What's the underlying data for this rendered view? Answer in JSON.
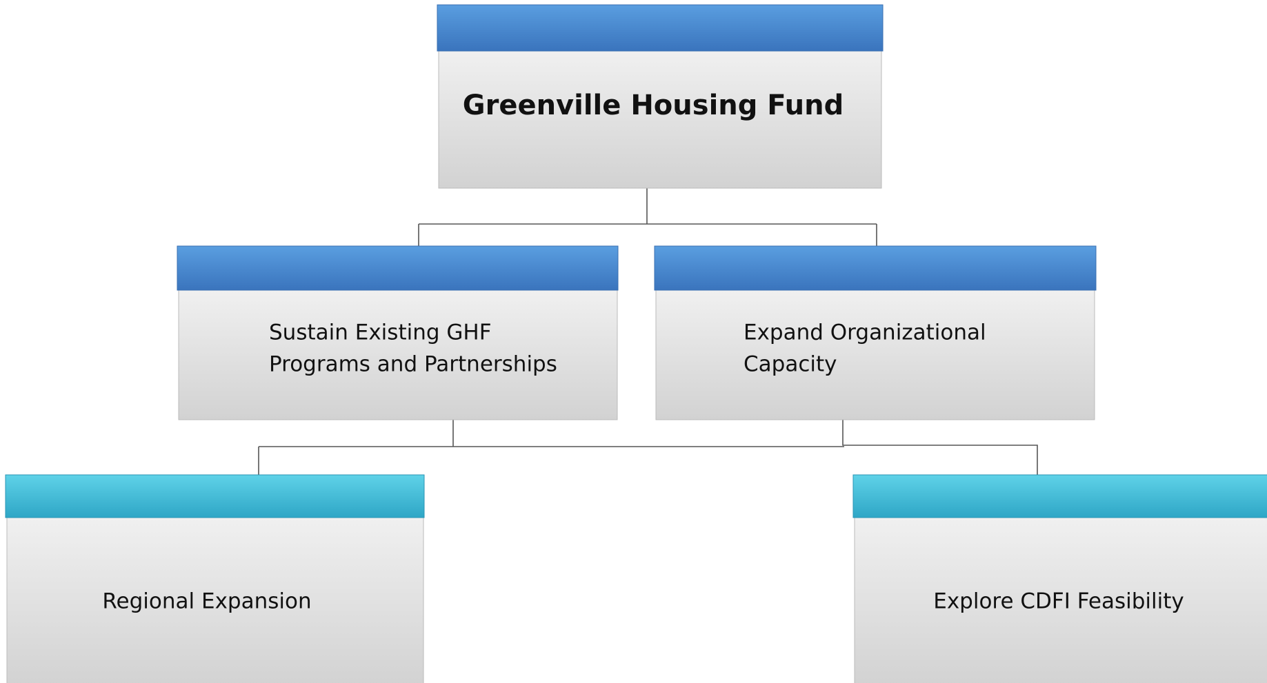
{
  "nodes": [
    {
      "lines": [
        "Greenville Housing Fund"
      ]
    },
    {
      "lines": [
        "Sustain Existing GHF",
        "Programs and Partnerships"
      ]
    },
    {
      "lines": [
        "Expand Organizational",
        "Capacity"
      ]
    },
    {
      "lines": [
        "Regional Expansion"
      ]
    },
    {
      "lines": [
        "Explore CDFI Feasibility"
      ]
    }
  ]
}
